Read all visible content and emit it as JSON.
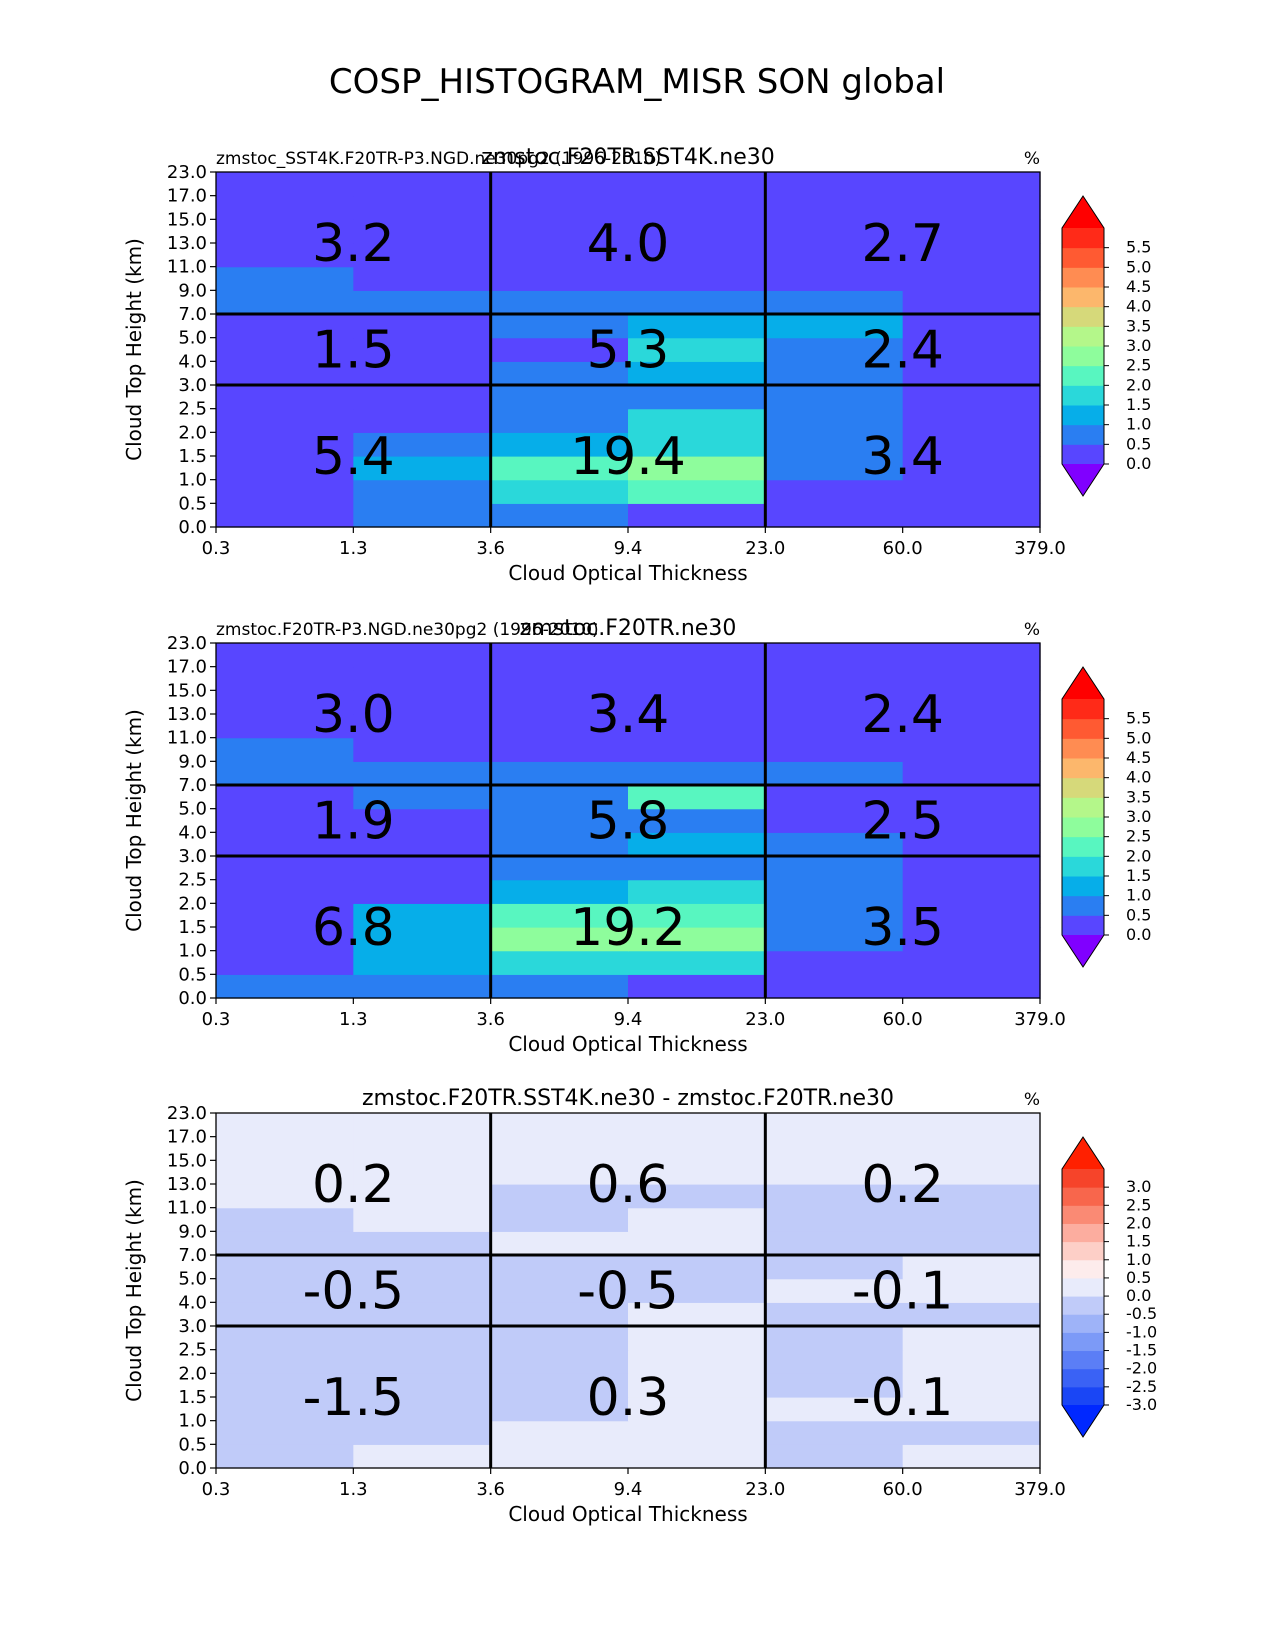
{
  "figure_title": "COSP_HISTOGRAM_MISR SON global",
  "chart_data": [
    {
      "type": "heatmap",
      "title": "zmstoc.F20TR.SST4K.ne30",
      "left_title": "zmstoc_SST4K.F20TR-P3.NGD.ne30pg2 (1996-2010)",
      "units_label": "%",
      "xlabel": "Cloud Optical Thickness",
      "ylabel": "Cloud Top Height (km)",
      "x_ticks": [
        "0.3",
        "1.3",
        "3.6",
        "9.4",
        "23.0",
        "60.0",
        "379.0"
      ],
      "y_ticks": [
        "0.0",
        "0.5",
        "1.0",
        "1.5",
        "2.0",
        "2.5",
        "3.0",
        "4.0",
        "5.0",
        "7.0",
        "9.0",
        "11.0",
        "13.0",
        "15.0",
        "17.0",
        "23.0"
      ],
      "values": [
        [
          0.2,
          0.7,
          0.9,
          0.2,
          0.2,
          0.2
        ],
        [
          0.2,
          0.7,
          1.6,
          2.2,
          0.2,
          0.2
        ],
        [
          0.2,
          1.3,
          2.2,
          2.6,
          0.9,
          0.2
        ],
        [
          0.2,
          0.9,
          1.3,
          1.8,
          0.8,
          0.2
        ],
        [
          0.2,
          0.3,
          0.9,
          1.8,
          0.7,
          0.2
        ],
        [
          0.2,
          0.2,
          0.8,
          0.9,
          0.7,
          0.2
        ],
        [
          0.2,
          0.2,
          0.8,
          1.3,
          0.7,
          0.2
        ],
        [
          0.2,
          0.2,
          0.2,
          1.8,
          0.8,
          0.2
        ],
        [
          0.2,
          0.2,
          0.8,
          1.3,
          1.3,
          0.2
        ],
        [
          0.8,
          0.6,
          0.7,
          0.7,
          0.7,
          0.2
        ],
        [
          0.8,
          0.2,
          0.2,
          0.2,
          0.2,
          0.2
        ],
        [
          0.2,
          0.2,
          0.2,
          0.2,
          0.2,
          0.2
        ],
        [
          0.2,
          0.2,
          0.2,
          0.2,
          0.2,
          0.2
        ],
        [
          0.2,
          0.2,
          0.2,
          0.2,
          0.2,
          0.2
        ],
        [
          0.2,
          0.2,
          0.2,
          0.2,
          0.2,
          0.2
        ]
      ],
      "cell_labels": [
        [
          "5.4",
          "19.4",
          "3.4"
        ],
        [
          "1.5",
          "5.3",
          "2.4"
        ],
        [
          "3.2",
          "4.0",
          "2.7"
        ]
      ],
      "colorbar": {
        "levels": [
          0.0,
          0.5,
          1.0,
          1.5,
          2.0,
          2.5,
          3.0,
          3.5,
          4.0,
          4.5,
          5.0,
          5.5
        ],
        "tick_labels": [
          "0.0",
          "0.5",
          "1.0",
          "1.5",
          "2.0",
          "2.5",
          "3.0",
          "3.5",
          "4.0",
          "4.5",
          "5.0",
          "5.5"
        ],
        "colors": [
          "#5846ff",
          "#2a7ef2",
          "#06aee9",
          "#2ad8da",
          "#58f6c0",
          "#8efd9c",
          "#b4f78a",
          "#d6d97a",
          "#fcb76c",
          "#ff8c52",
          "#ff5a32",
          "#ff2a18"
        ],
        "under_color": "#8000ff",
        "over_color": "#ff0000"
      }
    },
    {
      "type": "heatmap",
      "title": "zmstoc.F20TR.ne30",
      "left_title": "zmstoc.F20TR-P3.NGD.ne30pg2 (1996-2010)",
      "units_label": "%",
      "xlabel": "Cloud Optical Thickness",
      "ylabel": "Cloud Top Height (km)",
      "x_ticks": [
        "0.3",
        "1.3",
        "3.6",
        "9.4",
        "23.0",
        "60.0",
        "379.0"
      ],
      "y_ticks": [
        "0.0",
        "0.5",
        "1.0",
        "1.5",
        "2.0",
        "2.5",
        "3.0",
        "4.0",
        "5.0",
        "7.0",
        "9.0",
        "11.0",
        "13.0",
        "15.0",
        "17.0",
        "23.0"
      ],
      "values": [
        [
          0.8,
          0.8,
          0.8,
          0.2,
          0.2,
          0.2
        ],
        [
          0.2,
          1.3,
          1.8,
          1.8,
          0.2,
          0.2
        ],
        [
          0.2,
          1.3,
          2.7,
          2.7,
          0.8,
          0.2
        ],
        [
          0.2,
          1.3,
          2.2,
          2.2,
          0.8,
          0.2
        ],
        [
          0.2,
          0.2,
          1.3,
          1.8,
          0.8,
          0.2
        ],
        [
          0.2,
          0.2,
          0.8,
          0.8,
          0.8,
          0.2
        ],
        [
          0.2,
          0.2,
          0.8,
          1.3,
          0.8,
          0.2
        ],
        [
          0.2,
          0.2,
          0.8,
          0.8,
          0.2,
          0.2
        ],
        [
          0.2,
          0.8,
          0.8,
          2.2,
          0.2,
          0.2
        ],
        [
          0.8,
          0.8,
          0.8,
          0.8,
          0.8,
          0.2
        ],
        [
          0.8,
          0.2,
          0.2,
          0.2,
          0.2,
          0.2
        ],
        [
          0.2,
          0.2,
          0.2,
          0.2,
          0.2,
          0.2
        ],
        [
          0.2,
          0.2,
          0.2,
          0.2,
          0.2,
          0.2
        ],
        [
          0.2,
          0.2,
          0.2,
          0.2,
          0.2,
          0.2
        ],
        [
          0.2,
          0.2,
          0.2,
          0.2,
          0.2,
          0.2
        ]
      ],
      "cell_labels": [
        [
          "6.8",
          "19.2",
          "3.5"
        ],
        [
          "1.9",
          "5.8",
          "2.5"
        ],
        [
          "3.0",
          "3.4",
          "2.4"
        ]
      ],
      "colorbar": {
        "levels": [
          0.0,
          0.5,
          1.0,
          1.5,
          2.0,
          2.5,
          3.0,
          3.5,
          4.0,
          4.5,
          5.0,
          5.5
        ],
        "tick_labels": [
          "0.0",
          "0.5",
          "1.0",
          "1.5",
          "2.0",
          "2.5",
          "3.0",
          "3.5",
          "4.0",
          "4.5",
          "5.0",
          "5.5"
        ],
        "colors": [
          "#5846ff",
          "#2a7ef2",
          "#06aee9",
          "#2ad8da",
          "#58f6c0",
          "#8efd9c",
          "#b4f78a",
          "#d6d97a",
          "#fcb76c",
          "#ff8c52",
          "#ff5a32",
          "#ff2a18"
        ],
        "under_color": "#8000ff",
        "over_color": "#ff0000"
      }
    },
    {
      "type": "heatmap",
      "title": "zmstoc.F20TR.SST4K.ne30 - zmstoc.F20TR.ne30",
      "left_title": "",
      "units_label": "%",
      "xlabel": "Cloud Optical Thickness",
      "ylabel": "Cloud Top Height (km)",
      "x_ticks": [
        "0.3",
        "1.3",
        "3.6",
        "9.4",
        "23.0",
        "60.0",
        "379.0"
      ],
      "y_ticks": [
        "0.0",
        "0.5",
        "1.0",
        "1.5",
        "2.0",
        "2.5",
        "3.0",
        "4.0",
        "5.0",
        "7.0",
        "9.0",
        "11.0",
        "13.0",
        "15.0",
        "17.0",
        "23.0"
      ],
      "values": [
        [
          -0.2,
          0.2,
          0.2,
          0.2,
          -0.2,
          0.2
        ],
        [
          -0.2,
          -0.2,
          0.2,
          0.2,
          -0.2,
          -0.2
        ],
        [
          -0.2,
          -0.2,
          -0.2,
          0.2,
          0.2,
          0.2
        ],
        [
          -0.2,
          -0.2,
          -0.2,
          0.2,
          -0.2,
          0.2
        ],
        [
          -0.2,
          -0.2,
          -0.2,
          0.2,
          -0.2,
          0.2
        ],
        [
          -0.2,
          -0.2,
          -0.2,
          0.2,
          -0.2,
          0.2
        ],
        [
          -0.2,
          -0.2,
          -0.2,
          0.2,
          -0.2,
          -0.2
        ],
        [
          -0.2,
          -0.2,
          -0.2,
          -0.2,
          0.2,
          0.2
        ],
        [
          -0.2,
          -0.2,
          -0.2,
          -0.2,
          -0.2,
          0.2
        ],
        [
          -0.2,
          -0.2,
          0.2,
          0.2,
          -0.2,
          -0.2
        ],
        [
          -0.2,
          0.2,
          -0.2,
          0.2,
          -0.2,
          -0.2
        ],
        [
          0.2,
          0.2,
          -0.2,
          -0.2,
          -0.2,
          -0.2
        ],
        [
          0.2,
          0.2,
          0.2,
          0.2,
          0.2,
          0.2
        ],
        [
          0.2,
          0.2,
          0.2,
          0.2,
          0.2,
          0.2
        ],
        [
          0.2,
          0.2,
          0.2,
          0.2,
          0.2,
          0.2
        ]
      ],
      "cell_labels": [
        [
          "-1.5",
          "0.3",
          "-0.1"
        ],
        [
          "-0.5",
          "-0.5",
          "-0.1"
        ],
        [
          "0.2",
          "0.6",
          "0.2"
        ]
      ],
      "colorbar": {
        "levels": [
          -3.0,
          -2.5,
          -2.0,
          -1.5,
          -1.0,
          -0.5,
          0.0,
          0.5,
          1.0,
          1.5,
          2.0,
          2.5,
          3.0
        ],
        "tick_labels": [
          "-3.0",
          "-2.5",
          "-2.0",
          "-1.5",
          "-1.0",
          "-0.5",
          "0.0",
          "0.5",
          "1.0",
          "1.5",
          "2.0",
          "2.5",
          "3.0"
        ],
        "colors": [
          "#1a46f5",
          "#3a62f5",
          "#5b7ef6",
          "#7c9af7",
          "#9eb3f8",
          "#c0cbf9",
          "#e8ebfb",
          "#fdecec",
          "#fdcfc7",
          "#fcad9f",
          "#fa8a74",
          "#f8664c",
          "#f6442a"
        ],
        "under_color": "#0028ff",
        "over_color": "#ff2000"
      }
    }
  ]
}
